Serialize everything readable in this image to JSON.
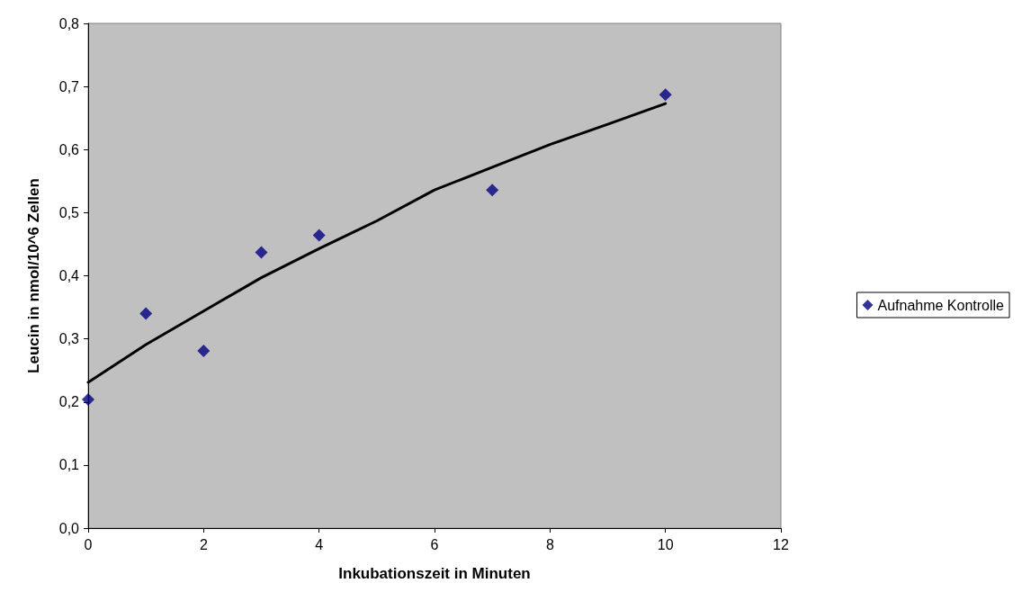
{
  "chart_data": {
    "type": "scatter",
    "xlabel": "Inkubationszeit in Minuten",
    "ylabel": "Leucin in nmol/10^6 Zellen",
    "xlim": [
      0,
      12
    ],
    "xticks": [
      0,
      2,
      4,
      6,
      8,
      10,
      12
    ],
    "ylim": [
      0,
      0.8
    ],
    "yticks": [
      {
        "value": 0,
        "label": "0,0"
      },
      {
        "value": 0.1,
        "label": "0,1"
      },
      {
        "value": 0.2,
        "label": "0,2"
      },
      {
        "value": 0.3,
        "label": "0,3"
      },
      {
        "value": 0.4,
        "label": "0,4"
      },
      {
        "value": 0.5,
        "label": "0,5"
      },
      {
        "value": 0.6,
        "label": "0,6"
      },
      {
        "value": 0.7,
        "label": "0,7"
      },
      {
        "value": 0.8,
        "label": "0,8"
      }
    ],
    "grid": false,
    "legend": "right",
    "marker": "diamond",
    "series": [
      {
        "name": "Aufnahme Kontrolle",
        "color": "#000080",
        "x": [
          0,
          1,
          2,
          3,
          4,
          7,
          10
        ],
        "values": [
          0.204,
          0.34,
          0.281,
          0.437,
          0.464,
          0.536,
          0.687
        ]
      },
      {
        "type": "line",
        "color": "#000000",
        "line_style": "solid",
        "marker": "none",
        "x": [
          0,
          1,
          2,
          3,
          4,
          5,
          6,
          7,
          8,
          9,
          10
        ],
        "values": [
          0.231,
          0.291,
          0.344,
          0.397,
          0.443,
          0.487,
          0.536,
          0.572,
          0.608,
          0.64,
          0.673
        ]
      }
    ]
  }
}
